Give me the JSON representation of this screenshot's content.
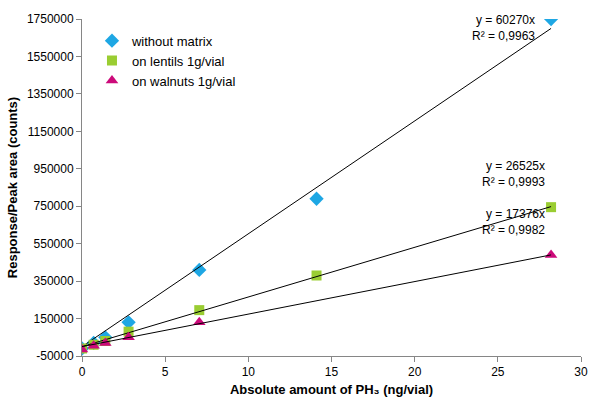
{
  "chart_data": {
    "type": "scatter",
    "x_label": "Absolute amount of PH₃ (ng/vial)",
    "y_label": "Response/Peak area (counts)",
    "xlim": [
      0,
      30
    ],
    "xticks": [
      0,
      5,
      10,
      15,
      20,
      25,
      30
    ],
    "ylim": [
      -50000,
      1750000
    ],
    "yticks": [
      -50000,
      150000,
      350000,
      550000,
      750000,
      950000,
      1150000,
      1350000,
      1550000,
      1750000
    ],
    "grid": false,
    "legend": "upper left",
    "series": [
      {
        "name": "without matrix",
        "color": "#1ea7e4",
        "marker": "diamond",
        "x": [
          0,
          0.7,
          1.4,
          2.8,
          7.05,
          14.1,
          28.2
        ],
        "values": [
          -10000,
          20000,
          50000,
          130000,
          410000,
          790000,
          1750000
        ],
        "trendline": {
          "slope": 60270,
          "equation": "y = 60270x",
          "r2": "R² = 0,9963"
        }
      },
      {
        "name": "on lentils 1g/vial",
        "color": "#9acd32",
        "marker": "square",
        "x": [
          0,
          0.7,
          1.4,
          2.8,
          7.05,
          14.1,
          28.2
        ],
        "values": [
          -10000,
          10000,
          30000,
          80000,
          195000,
          380000,
          745000
        ],
        "trendline": {
          "slope": 26525,
          "equation": "y = 26525x",
          "r2": "R² = 0,9993"
        }
      },
      {
        "name": "on walnuts 1g/vial",
        "color": "#cc0a7a",
        "marker": "triangle-up",
        "x": [
          0,
          0.7,
          1.4,
          2.8,
          7.05,
          28.2
        ],
        "values": [
          -15000,
          5000,
          20000,
          50000,
          130000,
          490000
        ],
        "trendline": {
          "slope": 17376,
          "equation": "y = 17376x",
          "r2": "R² = 0,9982"
        }
      }
    ]
  }
}
